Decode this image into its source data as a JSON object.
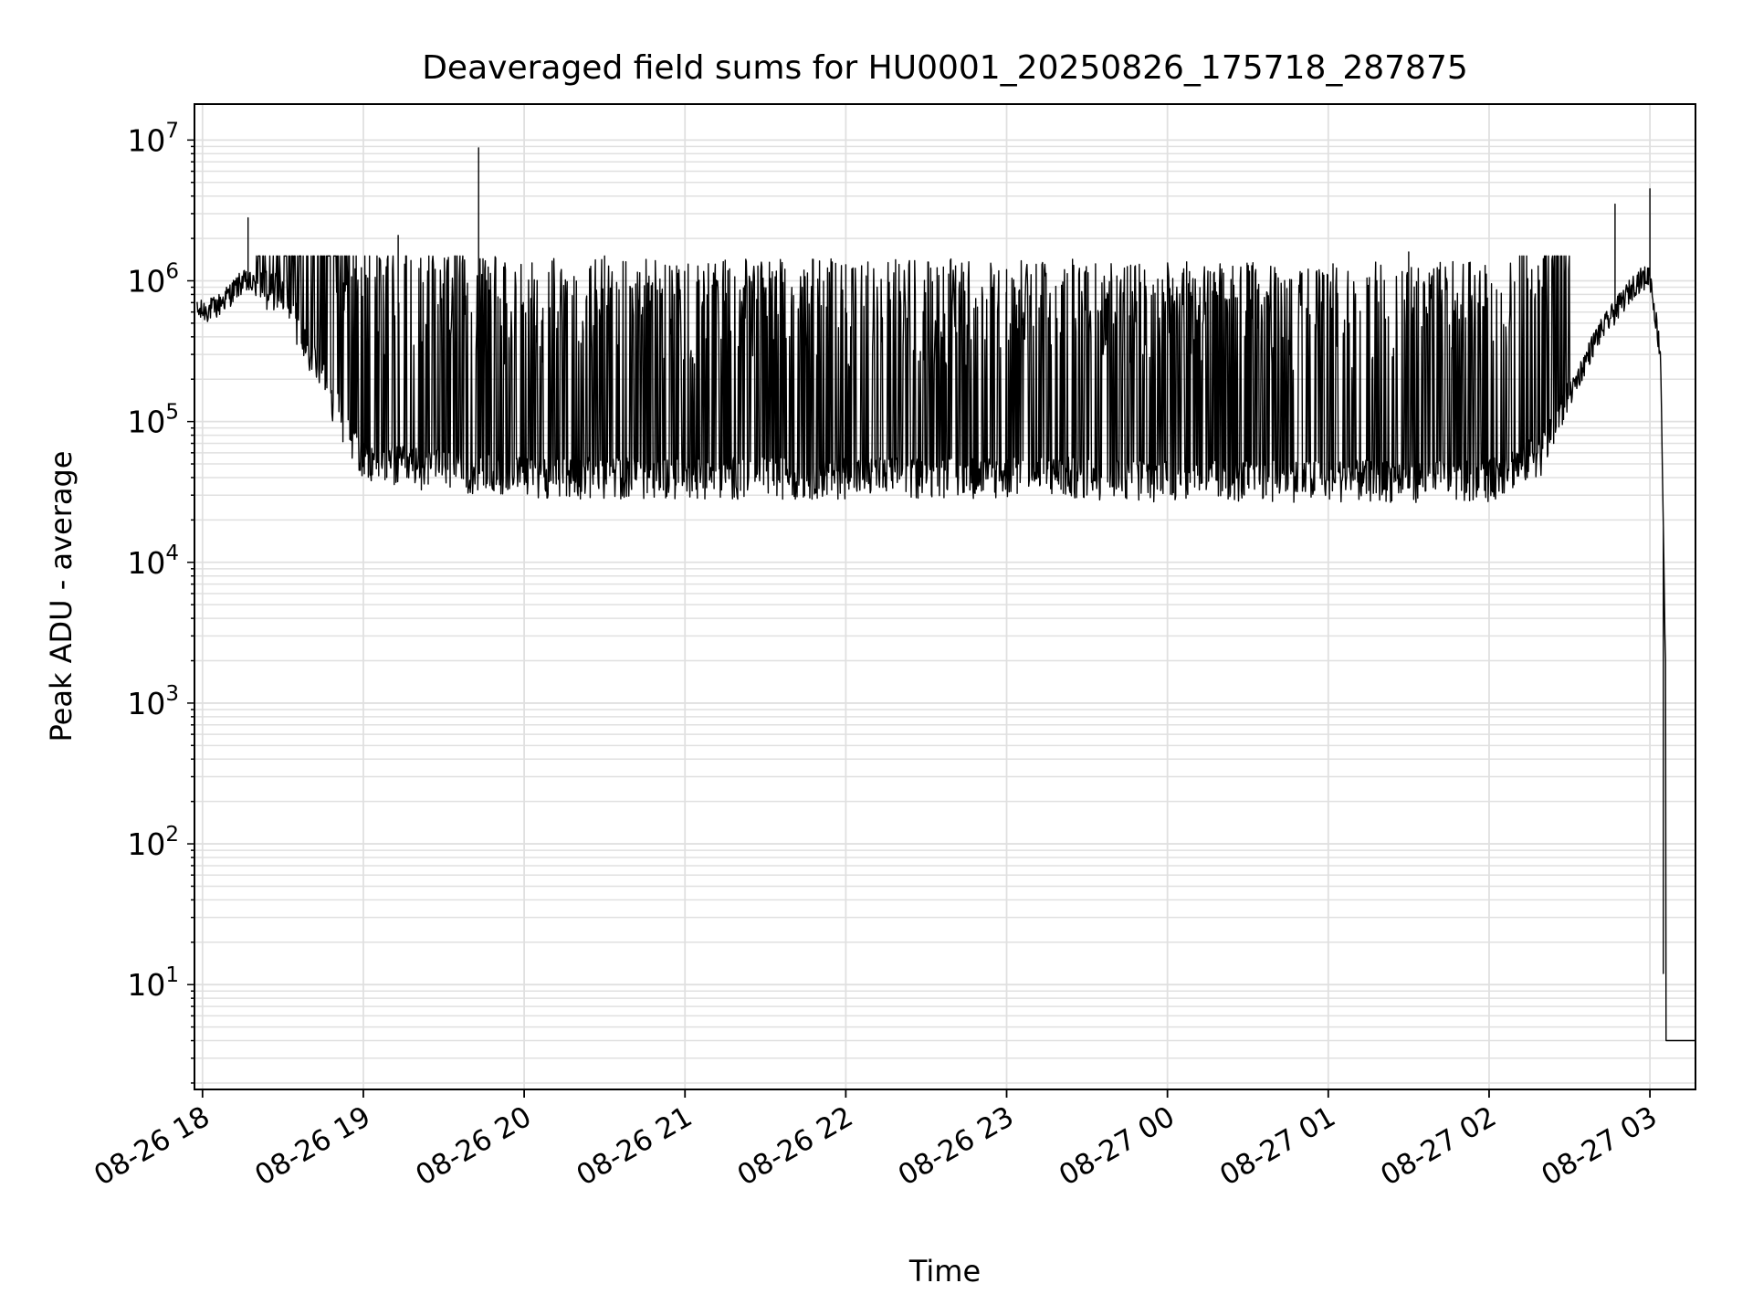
{
  "chart_data": {
    "type": "line",
    "title": "Deaveraged field sums for HU0001_20250826_175718_287875",
    "xlabel": "Time",
    "ylabel": "Peak ADU - average",
    "yscale": "log",
    "ylim": [
      1.8,
      18000000
    ],
    "xlim": [
      "2025-08-26 17:57",
      "2025-08-27 03:17"
    ],
    "grid": true,
    "line_color": "#000000",
    "grid_color": "#e0e0e0",
    "x_ticks": [
      "08-26 18",
      "08-26 19",
      "08-26 20",
      "08-26 21",
      "08-26 22",
      "08-26 23",
      "08-27 00",
      "08-27 01",
      "08-27 02",
      "08-27 03"
    ],
    "y_ticks": [
      {
        "base": "10",
        "exp": "1"
      },
      {
        "base": "10",
        "exp": "2"
      },
      {
        "base": "10",
        "exp": "3"
      },
      {
        "base": "10",
        "exp": "4"
      },
      {
        "base": "10",
        "exp": "5"
      },
      {
        "base": "10",
        "exp": "6"
      },
      {
        "base": "10",
        "exp": "7"
      }
    ],
    "series": [
      {
        "x": [
          "2025-08-26 17:58",
          "2025-08-26 18:05",
          "2025-08-26 18:15",
          "2025-08-26 18:30",
          "2025-08-26 18:45",
          "2025-08-26 19:00",
          "2025-08-26 19:30",
          "2025-08-26 20:00",
          "2025-08-26 20:30",
          "2025-08-26 21:00",
          "2025-08-26 21:30",
          "2025-08-26 22:00",
          "2025-08-26 22:30",
          "2025-08-26 23:00",
          "2025-08-26 23:30",
          "2025-08-27 00:00",
          "2025-08-27 00:30",
          "2025-08-27 01:00",
          "2025-08-27 01:30",
          "2025-08-27 02:00",
          "2025-08-27 02:20",
          "2025-08-27 02:40",
          "2025-08-27 02:55",
          "2025-08-27 03:00",
          "2025-08-27 03:04",
          "2025-08-27 03:08",
          "2025-08-27 03:17"
        ],
        "y": [
          600000,
          650000,
          1000000,
          800000,
          200000,
          50000,
          45000,
          40000,
          40000,
          40000,
          40000,
          40000,
          40000,
          40000,
          40000,
          38000,
          38000,
          38000,
          38000,
          38000,
          60000,
          400000,
          1000000,
          1100000,
          300000,
          4,
          4
        ],
        "spikes": [
          {
            "x": "2025-08-26 18:17",
            "y": 2800000
          },
          {
            "x": "2025-08-26 19:13",
            "y": 2100000
          },
          {
            "x": "2025-08-26 19:43",
            "y": 8800000
          },
          {
            "x": "2025-08-26 20:30",
            "y": 1500000
          },
          {
            "x": "2025-08-26 21:15",
            "y": 1400000
          },
          {
            "x": "2025-08-26 22:00",
            "y": 1300000
          },
          {
            "x": "2025-08-26 23:00",
            "y": 1200000
          },
          {
            "x": "2025-08-27 00:00",
            "y": 1100000
          },
          {
            "x": "2025-08-27 01:30",
            "y": 1600000
          },
          {
            "x": "2025-08-27 02:47",
            "y": 3500000
          },
          {
            "x": "2025-08-27 03:00",
            "y": 4500000
          },
          {
            "x": "2025-08-27 03:05",
            "y": 12
          }
        ]
      }
    ]
  }
}
